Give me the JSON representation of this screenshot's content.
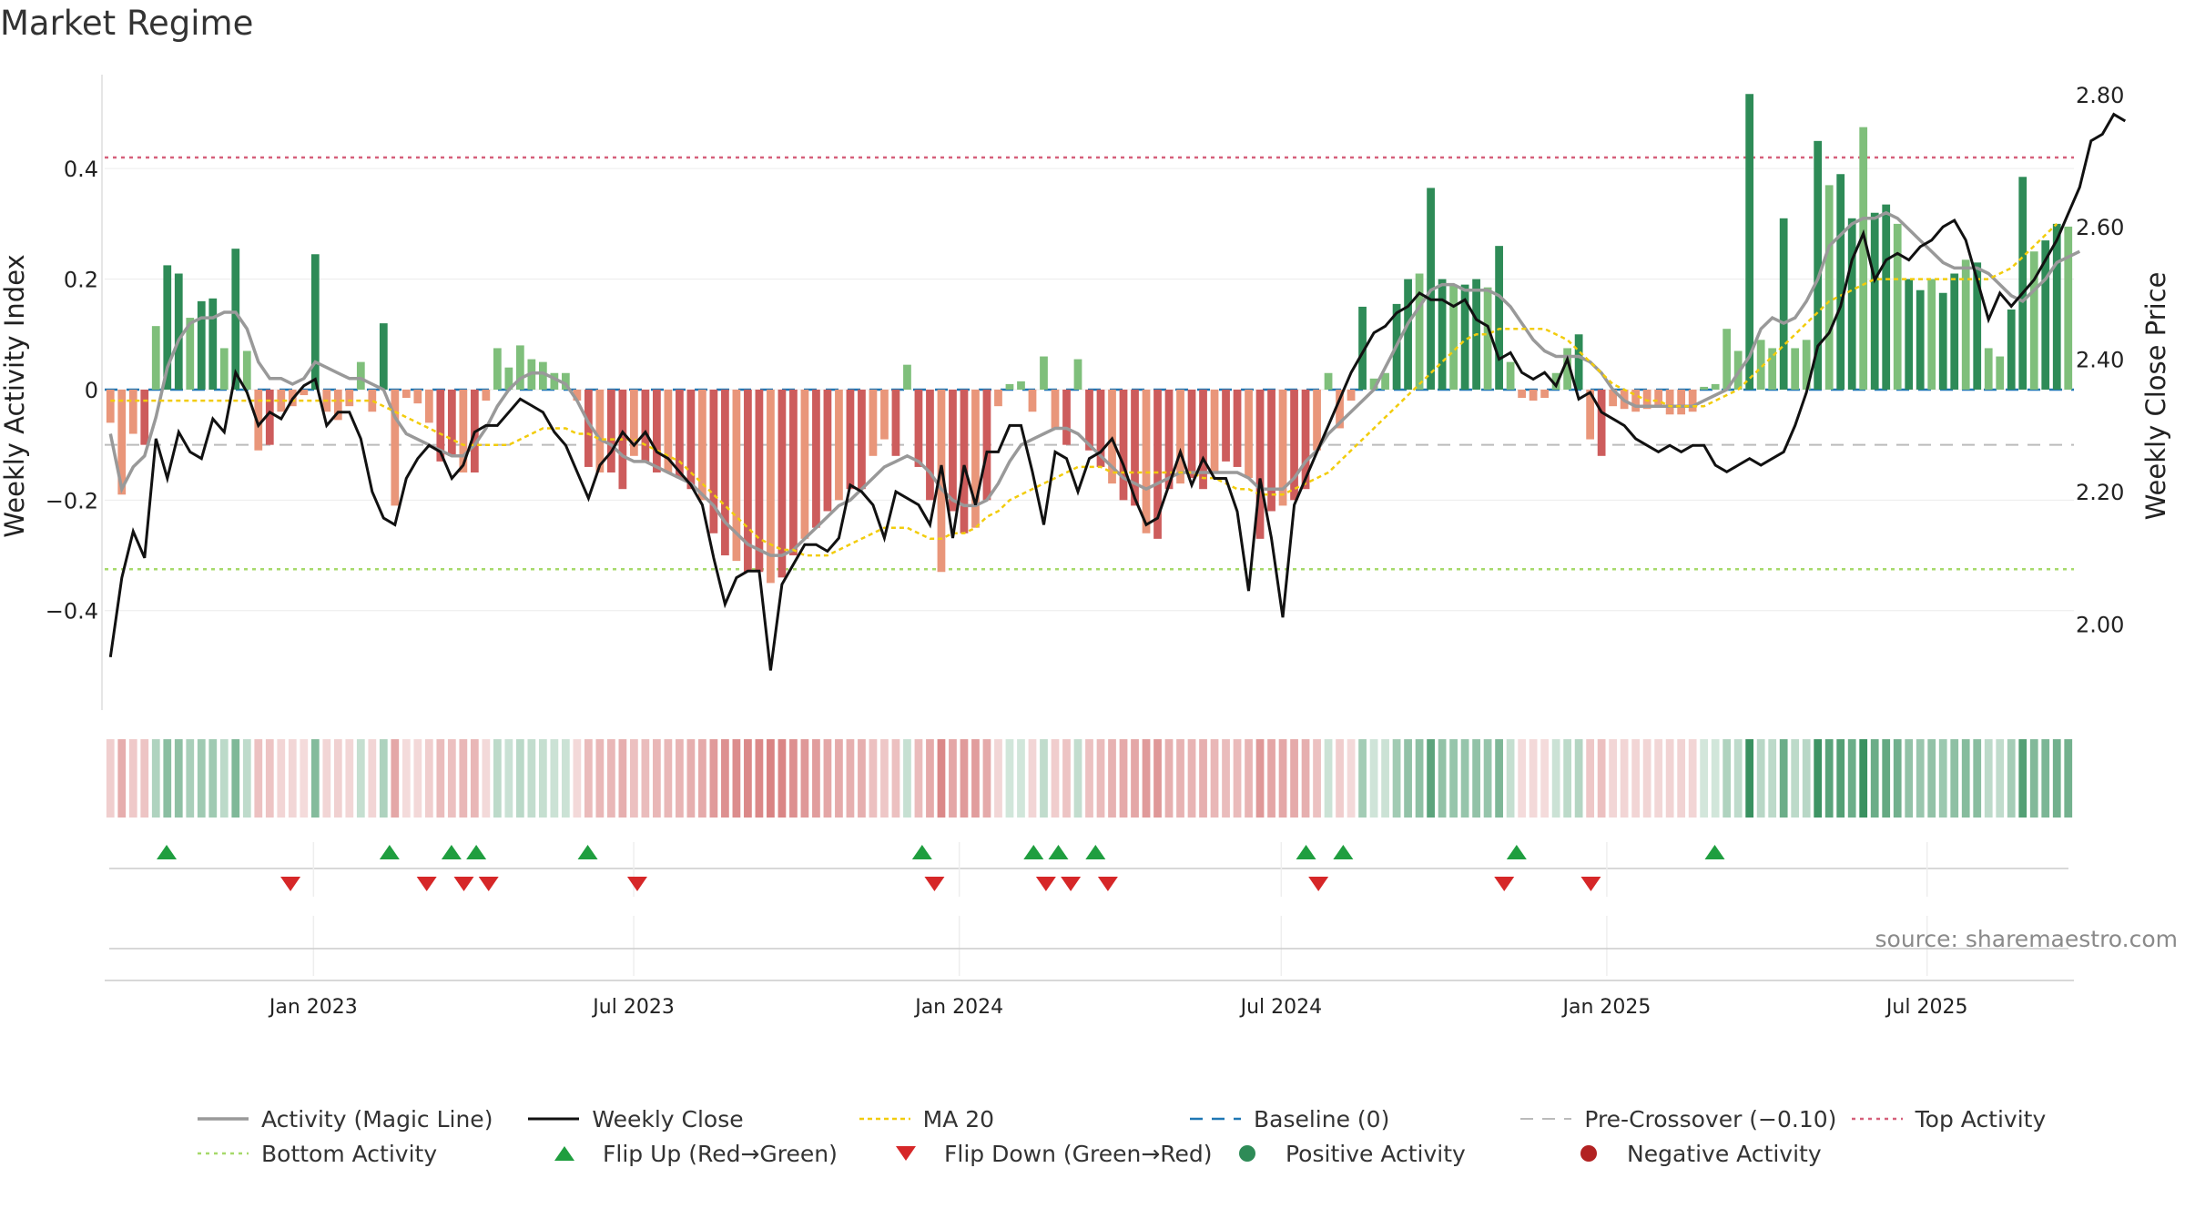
{
  "title": "Market Regime",
  "source_text": "source: sharemaestro.com",
  "colors": {
    "pos_dark": "#2e8b57",
    "pos_light": "#7fbf7b",
    "neg_dark": "#cd5c5c",
    "neg_light": "#e9967a",
    "close_line": "#111111",
    "magic_line": "#999999",
    "ma20": "#f2cc0c",
    "baseline": "#1f77b4",
    "pre_crossover": "#bbbbbb",
    "top_activity": "#d6607a",
    "bottom_activity": "#a6d96a",
    "flip_up": "#1f9e3f",
    "flip_down": "#d62728"
  },
  "chart_data": {
    "type": "bar",
    "title": "Market Regime",
    "xlabel": "",
    "ylabel": "Weekly Activity Index",
    "y2label": "Weekly Close Price",
    "ylim": [
      -0.58,
      0.57
    ],
    "y2lim": [
      1.87,
      2.83
    ],
    "yticks": [
      -0.4,
      -0.2,
      0,
      0.2,
      0.4
    ],
    "ytick_labels": [
      "−0.4",
      "−0.2",
      "0",
      "0.2",
      "0.4"
    ],
    "y2ticks": [
      2.0,
      2.2,
      2.4,
      2.6,
      2.8
    ],
    "y2tick_labels": [
      "2.00",
      "2.20",
      "2.40",
      "2.60",
      "2.80"
    ],
    "x_start": "2022-09-05",
    "x_end": "2025-09-22",
    "xticks": [
      "2023-01-01",
      "2023-07-01",
      "2024-01-01",
      "2024-07-01",
      "2025-01-01",
      "2025-07-01"
    ],
    "xtick_labels": [
      "Jan 2023",
      "Jul 2023",
      "Jan 2024",
      "Jul 2024",
      "Jan 2025",
      "Jul 2025"
    ],
    "reference_lines": {
      "baseline": 0,
      "pre_crossover": -0.1,
      "top_activity": 0.42,
      "bottom_activity": -0.325
    },
    "activity": [
      -0.06,
      -0.19,
      -0.08,
      -0.1,
      0.115,
      0.225,
      0.21,
      0.13,
      0.16,
      0.165,
      0.075,
      0.255,
      0.07,
      -0.11,
      -0.1,
      -0.04,
      -0.03,
      -0.01,
      0.245,
      -0.04,
      -0.055,
      -0.03,
      0.05,
      -0.04,
      0.12,
      -0.21,
      -0.015,
      -0.025,
      -0.06,
      -0.13,
      -0.12,
      -0.15,
      -0.15,
      -0.02,
      0.075,
      0.04,
      0.08,
      0.055,
      0.05,
      0.03,
      0.03,
      -0.02,
      -0.14,
      -0.15,
      -0.15,
      -0.18,
      -0.12,
      -0.13,
      -0.15,
      -0.15,
      -0.16,
      -0.18,
      -0.2,
      -0.26,
      -0.3,
      -0.31,
      -0.33,
      -0.33,
      -0.35,
      -0.34,
      -0.3,
      -0.27,
      -0.25,
      -0.22,
      -0.2,
      -0.18,
      -0.18,
      -0.12,
      -0.09,
      -0.12,
      0.045,
      -0.14,
      -0.2,
      -0.33,
      -0.22,
      -0.26,
      -0.25,
      -0.2,
      -0.03,
      0.01,
      0.015,
      -0.04,
      0.06,
      -0.07,
      -0.1,
      0.055,
      -0.11,
      -0.14,
      -0.17,
      -0.2,
      -0.21,
      -0.26,
      -0.27,
      -0.18,
      -0.17,
      -0.16,
      -0.18,
      -0.15,
      -0.13,
      -0.14,
      -0.16,
      -0.27,
      -0.22,
      -0.21,
      -0.2,
      -0.18,
      -0.11,
      0.03,
      -0.07,
      -0.02,
      0.15,
      0.02,
      0.03,
      0.155,
      0.2,
      0.21,
      0.365,
      0.2,
      0.19,
      0.19,
      0.2,
      0.185,
      0.26,
      0.05,
      -0.015,
      -0.02,
      -0.015,
      0.03,
      0.075,
      0.1,
      -0.09,
      -0.12,
      -0.03,
      -0.035,
      -0.04,
      -0.035,
      -0.03,
      -0.045,
      -0.045,
      -0.04,
      0.005,
      0.01,
      0.11,
      0.07,
      0.535,
      0.09,
      0.075,
      0.31,
      0.075,
      0.09,
      0.45,
      0.37,
      0.39,
      0.31,
      0.475,
      0.32,
      0.335,
      0.3,
      0.2,
      0.18,
      0.2,
      0.175,
      0.21,
      0.235,
      0.23,
      0.075,
      0.06,
      0.145,
      0.385,
      0.25,
      0.27,
      0.3,
      0.295
    ],
    "magic_line": [
      -0.08,
      -0.18,
      -0.14,
      -0.12,
      -0.05,
      0.04,
      0.09,
      0.12,
      0.13,
      0.13,
      0.14,
      0.14,
      0.11,
      0.05,
      0.02,
      0.02,
      0.01,
      0.02,
      0.05,
      0.04,
      0.03,
      0.02,
      0.02,
      0.01,
      0.0,
      -0.05,
      -0.08,
      -0.09,
      -0.1,
      -0.11,
      -0.12,
      -0.12,
      -0.1,
      -0.07,
      -0.03,
      0.0,
      0.02,
      0.03,
      0.03,
      0.02,
      0.01,
      -0.02,
      -0.06,
      -0.09,
      -0.1,
      -0.12,
      -0.13,
      -0.13,
      -0.14,
      -0.15,
      -0.16,
      -0.17,
      -0.19,
      -0.21,
      -0.24,
      -0.26,
      -0.28,
      -0.29,
      -0.3,
      -0.3,
      -0.29,
      -0.27,
      -0.25,
      -0.23,
      -0.21,
      -0.2,
      -0.18,
      -0.16,
      -0.14,
      -0.13,
      -0.12,
      -0.13,
      -0.15,
      -0.18,
      -0.2,
      -0.21,
      -0.21,
      -0.2,
      -0.17,
      -0.13,
      -0.1,
      -0.09,
      -0.08,
      -0.07,
      -0.07,
      -0.08,
      -0.1,
      -0.12,
      -0.14,
      -0.16,
      -0.17,
      -0.18,
      -0.17,
      -0.16,
      -0.15,
      -0.15,
      -0.15,
      -0.15,
      -0.15,
      -0.15,
      -0.16,
      -0.18,
      -0.18,
      -0.18,
      -0.16,
      -0.13,
      -0.11,
      -0.08,
      -0.06,
      -0.04,
      -0.02,
      0.0,
      0.04,
      0.08,
      0.12,
      0.15,
      0.18,
      0.19,
      0.19,
      0.18,
      0.18,
      0.18,
      0.17,
      0.15,
      0.12,
      0.09,
      0.07,
      0.06,
      0.06,
      0.06,
      0.05,
      0.03,
      0.0,
      -0.02,
      -0.03,
      -0.03,
      -0.03,
      -0.03,
      -0.03,
      -0.03,
      -0.02,
      -0.01,
      0.0,
      0.03,
      0.06,
      0.11,
      0.13,
      0.12,
      0.13,
      0.16,
      0.2,
      0.26,
      0.28,
      0.3,
      0.31,
      0.31,
      0.32,
      0.31,
      0.29,
      0.27,
      0.25,
      0.23,
      0.22,
      0.22,
      0.22,
      0.21,
      0.19,
      0.17,
      0.16,
      0.18,
      0.2,
      0.23,
      0.24,
      0.25
    ],
    "ma20": [
      -0.02,
      -0.02,
      -0.02,
      -0.02,
      -0.02,
      -0.02,
      -0.02,
      -0.02,
      -0.02,
      -0.02,
      -0.02,
      -0.02,
      -0.02,
      -0.02,
      -0.02,
      -0.02,
      -0.02,
      -0.02,
      -0.02,
      -0.02,
      -0.02,
      -0.02,
      -0.02,
      -0.02,
      -0.03,
      -0.04,
      -0.05,
      -0.06,
      -0.07,
      -0.08,
      -0.09,
      -0.1,
      -0.1,
      -0.1,
      -0.1,
      -0.1,
      -0.09,
      -0.08,
      -0.07,
      -0.07,
      -0.07,
      -0.08,
      -0.08,
      -0.09,
      -0.09,
      -0.09,
      -0.09,
      -0.1,
      -0.11,
      -0.12,
      -0.13,
      -0.15,
      -0.17,
      -0.19,
      -0.21,
      -0.23,
      -0.25,
      -0.27,
      -0.28,
      -0.29,
      -0.29,
      -0.3,
      -0.3,
      -0.3,
      -0.29,
      -0.28,
      -0.27,
      -0.26,
      -0.25,
      -0.25,
      -0.25,
      -0.26,
      -0.27,
      -0.27,
      -0.26,
      -0.26,
      -0.25,
      -0.23,
      -0.22,
      -0.2,
      -0.19,
      -0.18,
      -0.17,
      -0.16,
      -0.15,
      -0.14,
      -0.14,
      -0.14,
      -0.15,
      -0.15,
      -0.15,
      -0.15,
      -0.15,
      -0.15,
      -0.15,
      -0.15,
      -0.16,
      -0.16,
      -0.17,
      -0.18,
      -0.18,
      -0.19,
      -0.19,
      -0.19,
      -0.18,
      -0.17,
      -0.16,
      -0.15,
      -0.13,
      -0.11,
      -0.09,
      -0.07,
      -0.05,
      -0.03,
      -0.01,
      0.01,
      0.03,
      0.05,
      0.07,
      0.09,
      0.1,
      0.1,
      0.11,
      0.11,
      0.11,
      0.11,
      0.11,
      0.1,
      0.09,
      0.07,
      0.05,
      0.03,
      0.01,
      0.0,
      -0.01,
      -0.02,
      -0.02,
      -0.03,
      -0.03,
      -0.03,
      -0.03,
      -0.02,
      -0.01,
      0.0,
      0.02,
      0.04,
      0.06,
      0.08,
      0.1,
      0.12,
      0.14,
      0.16,
      0.17,
      0.18,
      0.19,
      0.2,
      0.2,
      0.2,
      0.2,
      0.2,
      0.2,
      0.2,
      0.2,
      0.2,
      0.2,
      0.2,
      0.21,
      0.22,
      0.24,
      0.26,
      0.28,
      0.3
    ],
    "weekly_close": [
      1.95,
      2.07,
      2.14,
      2.1,
      2.28,
      2.22,
      2.29,
      2.26,
      2.25,
      2.31,
      2.29,
      2.38,
      2.35,
      2.3,
      2.32,
      2.31,
      2.34,
      2.36,
      2.37,
      2.3,
      2.32,
      2.32,
      2.28,
      2.2,
      2.16,
      2.15,
      2.22,
      2.25,
      2.27,
      2.26,
      2.22,
      2.24,
      2.29,
      2.3,
      2.3,
      2.32,
      2.34,
      2.33,
      2.32,
      2.29,
      2.27,
      2.23,
      2.19,
      2.24,
      2.26,
      2.29,
      2.27,
      2.29,
      2.26,
      2.25,
      2.23,
      2.21,
      2.18,
      2.1,
      2.03,
      2.07,
      2.08,
      2.08,
      1.93,
      2.06,
      2.09,
      2.12,
      2.12,
      2.11,
      2.13,
      2.21,
      2.2,
      2.18,
      2.13,
      2.2,
      2.19,
      2.18,
      2.15,
      2.24,
      2.13,
      2.24,
      2.18,
      2.26,
      2.26,
      2.3,
      2.3,
      2.23,
      2.15,
      2.26,
      2.25,
      2.2,
      2.25,
      2.26,
      2.28,
      2.24,
      2.19,
      2.15,
      2.16,
      2.21,
      2.26,
      2.21,
      2.25,
      2.22,
      2.22,
      2.17,
      2.05,
      2.22,
      2.13,
      2.01,
      2.18,
      2.22,
      2.26,
      2.3,
      2.34,
      2.38,
      2.41,
      2.44,
      2.45,
      2.47,
      2.48,
      2.5,
      2.49,
      2.49,
      2.48,
      2.49,
      2.46,
      2.45,
      2.4,
      2.41,
      2.38,
      2.37,
      2.38,
      2.36,
      2.4,
      2.34,
      2.35,
      2.32,
      2.31,
      2.3,
      2.28,
      2.27,
      2.26,
      2.27,
      2.26,
      2.27,
      2.27,
      2.24,
      2.23,
      2.24,
      2.25,
      2.24,
      2.25,
      2.26,
      2.3,
      2.35,
      2.42,
      2.44,
      2.48,
      2.55,
      2.59,
      2.52,
      2.55,
      2.56,
      2.55,
      2.57,
      2.58,
      2.6,
      2.61,
      2.58,
      2.52,
      2.46,
      2.5,
      2.48,
      2.5,
      2.52,
      2.55,
      2.58,
      2.62,
      2.66,
      2.73,
      2.74,
      2.77,
      2.76
    ],
    "flip_up_dates": [
      "2022-10-10",
      "2023-02-13",
      "2023-03-20",
      "2023-04-03",
      "2023-06-05",
      "2023-12-11",
      "2024-02-12",
      "2024-02-26",
      "2024-03-18",
      "2024-07-15",
      "2024-08-05",
      "2024-11-11",
      "2025-03-03"
    ],
    "flip_down_dates": [
      "2022-12-19",
      "2023-03-06",
      "2023-03-27",
      "2023-04-10",
      "2023-07-03",
      "2023-12-18",
      "2024-02-19",
      "2024-03-04",
      "2024-03-25",
      "2024-07-22",
      "2024-11-04",
      "2024-12-23"
    ],
    "legend": [
      [
        "Activity (Magic Line)",
        "Weekly Close",
        "MA 20",
        "Baseline (0)",
        "Pre-Crossover (−0.10)",
        "Top Activity"
      ],
      [
        "Bottom Activity",
        "Flip Up (Red→Green)",
        "Flip Down (Green→Red)",
        "Positive Activity",
        "Negative Activity"
      ]
    ]
  }
}
